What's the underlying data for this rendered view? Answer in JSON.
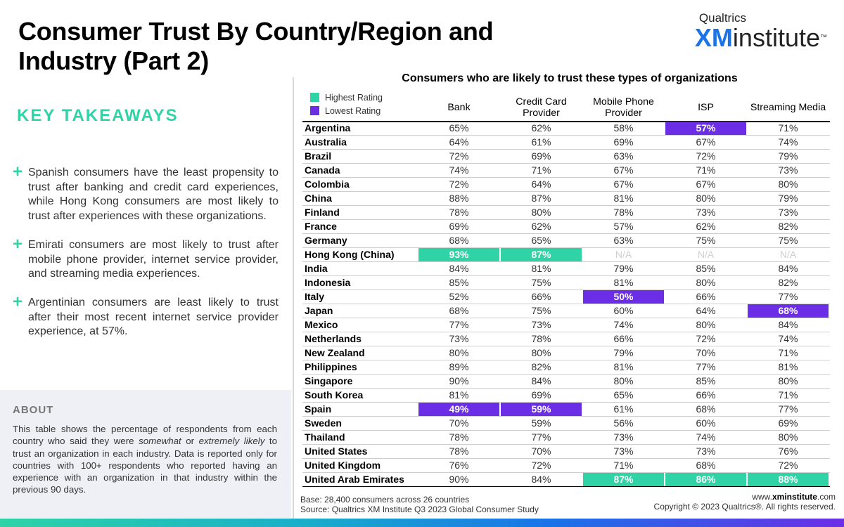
{
  "title": "Consumer Trust By Country/Region and Industry (Part 2)",
  "brand": {
    "top": "Qualtrics",
    "xm": "XM",
    "rest": "institute",
    "tm": "™"
  },
  "key_takeaways": {
    "heading": "KEY TAKEAWAYS",
    "items": [
      "Spanish consumers have the least propensity to trust after banking and credit card experiences, while Hong Kong consumers are most likely to trust after experiences with these organizations.",
      "Emirati consumers are most likely to trust after mobile phone provider, internet service provider, and streaming media experiences.",
      "Argentinian consumers are least likely to trust after their most recent internet service provider experience, at 57%."
    ]
  },
  "about": {
    "heading": "ABOUT",
    "text_1": "This table shows the percentage of respondents from each country who said they were ",
    "em_1": "somewhat",
    "text_2": " or ",
    "em_2": "extremely likely",
    "text_3": " to trust an organization in each industry. Data is reported only for countries with 100+ respondents who reported having an experience with an organization in that industry within the previous 90 days."
  },
  "legend": {
    "high": "Highest Rating",
    "low": "Lowest Rating"
  },
  "footer": {
    "base": "Base: 28,400 consumers across 26 countries",
    "source": "Source: Qualtrics XM Institute Q3 2023 Global Consumer Study",
    "website_prefix": "www.",
    "website_bold": "xminstitute",
    "website_suffix": ".com",
    "copyright": "Copyright © 2023 Qualtrics®. All rights reserved."
  },
  "colors": {
    "high": "#2fd3a6",
    "low": "#6b2ee6",
    "xm_blue": "#1a73e8"
  },
  "chart_data": {
    "type": "table",
    "title": "Consumers who are likely to trust these types of organizations",
    "columns": [
      "Bank",
      "Credit Card Provider",
      "Mobile Phone Provider",
      "ISP",
      "Streaming Media"
    ],
    "rows": [
      {
        "country": "Argentina",
        "values": [
          "65%",
          "62%",
          "58%",
          "57%",
          "71%"
        ],
        "flags": [
          "",
          "",
          "",
          "low",
          ""
        ]
      },
      {
        "country": "Australia",
        "values": [
          "64%",
          "61%",
          "69%",
          "67%",
          "74%"
        ],
        "flags": [
          "",
          "",
          "",
          "",
          ""
        ]
      },
      {
        "country": "Brazil",
        "values": [
          "72%",
          "69%",
          "63%",
          "72%",
          "79%"
        ],
        "flags": [
          "",
          "",
          "",
          "",
          ""
        ]
      },
      {
        "country": "Canada",
        "values": [
          "74%",
          "71%",
          "67%",
          "71%",
          "73%"
        ],
        "flags": [
          "",
          "",
          "",
          "",
          ""
        ]
      },
      {
        "country": "Colombia",
        "values": [
          "72%",
          "64%",
          "67%",
          "67%",
          "80%"
        ],
        "flags": [
          "",
          "",
          "",
          "",
          ""
        ]
      },
      {
        "country": "China",
        "values": [
          "88%",
          "87%",
          "81%",
          "80%",
          "79%"
        ],
        "flags": [
          "",
          "",
          "",
          "",
          ""
        ]
      },
      {
        "country": "Finland",
        "values": [
          "78%",
          "80%",
          "78%",
          "73%",
          "73%"
        ],
        "flags": [
          "",
          "",
          "",
          "",
          ""
        ]
      },
      {
        "country": "France",
        "values": [
          "69%",
          "62%",
          "57%",
          "62%",
          "82%"
        ],
        "flags": [
          "",
          "",
          "",
          "",
          ""
        ]
      },
      {
        "country": "Germany",
        "values": [
          "68%",
          "65%",
          "63%",
          "75%",
          "75%"
        ],
        "flags": [
          "",
          "",
          "",
          "",
          ""
        ]
      },
      {
        "country": "Hong Kong (China)",
        "values": [
          "93%",
          "87%",
          "N/A",
          "N/A",
          "N/A"
        ],
        "flags": [
          "high",
          "high",
          "na",
          "na",
          "na"
        ]
      },
      {
        "country": "India",
        "values": [
          "84%",
          "81%",
          "79%",
          "85%",
          "84%"
        ],
        "flags": [
          "",
          "",
          "",
          "",
          ""
        ]
      },
      {
        "country": "Indonesia",
        "values": [
          "85%",
          "75%",
          "81%",
          "80%",
          "82%"
        ],
        "flags": [
          "",
          "",
          "",
          "",
          ""
        ]
      },
      {
        "country": "Italy",
        "values": [
          "52%",
          "66%",
          "50%",
          "66%",
          "77%"
        ],
        "flags": [
          "",
          "",
          "low",
          "",
          ""
        ]
      },
      {
        "country": "Japan",
        "values": [
          "68%",
          "75%",
          "60%",
          "64%",
          "68%"
        ],
        "flags": [
          "",
          "",
          "",
          "",
          "low"
        ]
      },
      {
        "country": "Mexico",
        "values": [
          "77%",
          "73%",
          "74%",
          "80%",
          "84%"
        ],
        "flags": [
          "",
          "",
          "",
          "",
          ""
        ]
      },
      {
        "country": "Netherlands",
        "values": [
          "73%",
          "78%",
          "66%",
          "72%",
          "74%"
        ],
        "flags": [
          "",
          "",
          "",
          "",
          ""
        ]
      },
      {
        "country": "New Zealand",
        "values": [
          "80%",
          "80%",
          "79%",
          "70%",
          "71%"
        ],
        "flags": [
          "",
          "",
          "",
          "",
          ""
        ]
      },
      {
        "country": "Philippines",
        "values": [
          "89%",
          "82%",
          "81%",
          "77%",
          "81%"
        ],
        "flags": [
          "",
          "",
          "",
          "",
          ""
        ]
      },
      {
        "country": "Singapore",
        "values": [
          "90%",
          "84%",
          "80%",
          "85%",
          "80%"
        ],
        "flags": [
          "",
          "",
          "",
          "",
          ""
        ]
      },
      {
        "country": "South Korea",
        "values": [
          "81%",
          "69%",
          "65%",
          "66%",
          "71%"
        ],
        "flags": [
          "",
          "",
          "",
          "",
          ""
        ]
      },
      {
        "country": "Spain",
        "values": [
          "49%",
          "59%",
          "61%",
          "68%",
          "77%"
        ],
        "flags": [
          "low",
          "low",
          "",
          "",
          ""
        ]
      },
      {
        "country": "Sweden",
        "values": [
          "70%",
          "59%",
          "56%",
          "60%",
          "69%"
        ],
        "flags": [
          "",
          "",
          "",
          "",
          ""
        ]
      },
      {
        "country": "Thailand",
        "values": [
          "78%",
          "77%",
          "73%",
          "74%",
          "80%"
        ],
        "flags": [
          "",
          "",
          "",
          "",
          ""
        ]
      },
      {
        "country": "United States",
        "values": [
          "78%",
          "70%",
          "73%",
          "73%",
          "76%"
        ],
        "flags": [
          "",
          "",
          "",
          "",
          ""
        ]
      },
      {
        "country": "United Kingdom",
        "values": [
          "76%",
          "72%",
          "71%",
          "68%",
          "72%"
        ],
        "flags": [
          "",
          "",
          "",
          "",
          ""
        ]
      },
      {
        "country": "United Arab Emirates",
        "values": [
          "90%",
          "84%",
          "87%",
          "86%",
          "88%"
        ],
        "flags": [
          "",
          "",
          "high",
          "high",
          "high"
        ]
      }
    ]
  }
}
